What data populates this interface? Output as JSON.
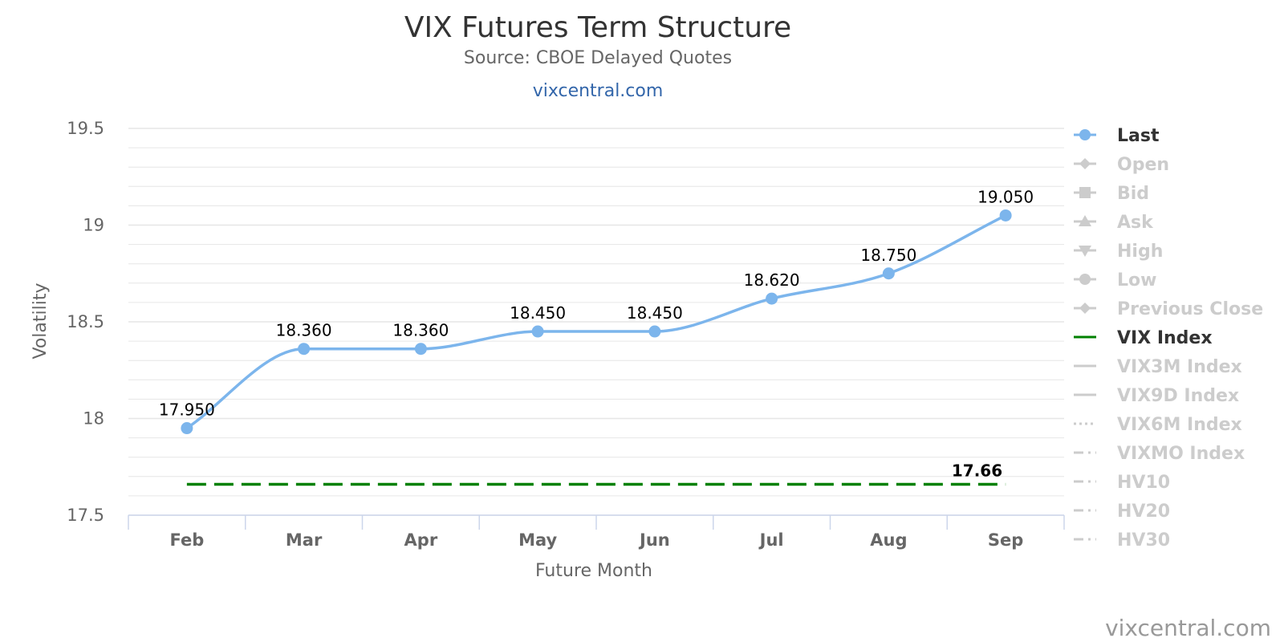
{
  "chart_data": {
    "type": "line",
    "title": "VIX Futures Term Structure",
    "subtitle": "Source: CBOE Delayed Quotes",
    "link_text": "vixcentral.com",
    "xlabel": "Future Month",
    "ylabel": "Volatility",
    "categories": [
      "Feb",
      "Mar",
      "Apr",
      "May",
      "Jun",
      "Jul",
      "Aug",
      "Sep"
    ],
    "ylim": [
      17.5,
      19.5
    ],
    "yticks": [
      17.5,
      18,
      18.5,
      19,
      19.5
    ],
    "ytick_labels": [
      "17.5",
      "18",
      "18.5",
      "19",
      "19.5"
    ],
    "minor_grid_step": 0.1,
    "grid": true,
    "series": [
      {
        "name": "Last",
        "values": [
          17.95,
          18.36,
          18.36,
          18.45,
          18.45,
          18.62,
          18.75,
          19.05
        ],
        "labels": [
          "17.950",
          "18.360",
          "18.360",
          "18.450",
          "18.450",
          "18.620",
          "18.750",
          "19.050"
        ],
        "color": "#7cb5ec",
        "style": "spline-with-markers"
      },
      {
        "name": "VIX Index",
        "values": [
          17.66,
          17.66,
          17.66,
          17.66,
          17.66,
          17.66,
          17.66,
          17.66
        ],
        "end_label": "17.66",
        "color": "#008000",
        "style": "dashed"
      }
    ],
    "legend_position": "right",
    "legend": [
      {
        "name": "Last",
        "active": true,
        "symbol": "circle",
        "color": "#7cb5ec"
      },
      {
        "name": "Open",
        "active": false,
        "symbol": "diamond"
      },
      {
        "name": "Bid",
        "active": false,
        "symbol": "square"
      },
      {
        "name": "Ask",
        "active": false,
        "symbol": "triangle"
      },
      {
        "name": "High",
        "active": false,
        "symbol": "triangle-down"
      },
      {
        "name": "Low",
        "active": false,
        "symbol": "circle"
      },
      {
        "name": "Previous Close",
        "active": false,
        "symbol": "diamond"
      },
      {
        "name": "VIX Index",
        "active": true,
        "symbol": "line",
        "color": "#008000"
      },
      {
        "name": "VIX3M Index",
        "active": false,
        "symbol": "line"
      },
      {
        "name": "VIX9D Index",
        "active": false,
        "symbol": "line"
      },
      {
        "name": "VIX6M Index",
        "active": false,
        "symbol": "dot"
      },
      {
        "name": "VIXMO Index",
        "active": false,
        "symbol": "dashdot"
      },
      {
        "name": "HV10",
        "active": false,
        "symbol": "dashdot"
      },
      {
        "name": "HV20",
        "active": false,
        "symbol": "dashdot"
      },
      {
        "name": "HV30",
        "active": false,
        "symbol": "dashdot"
      }
    ],
    "inactive_color": "#cccccc",
    "active_text_color": "#333333"
  },
  "credit": "vixcentral.com"
}
